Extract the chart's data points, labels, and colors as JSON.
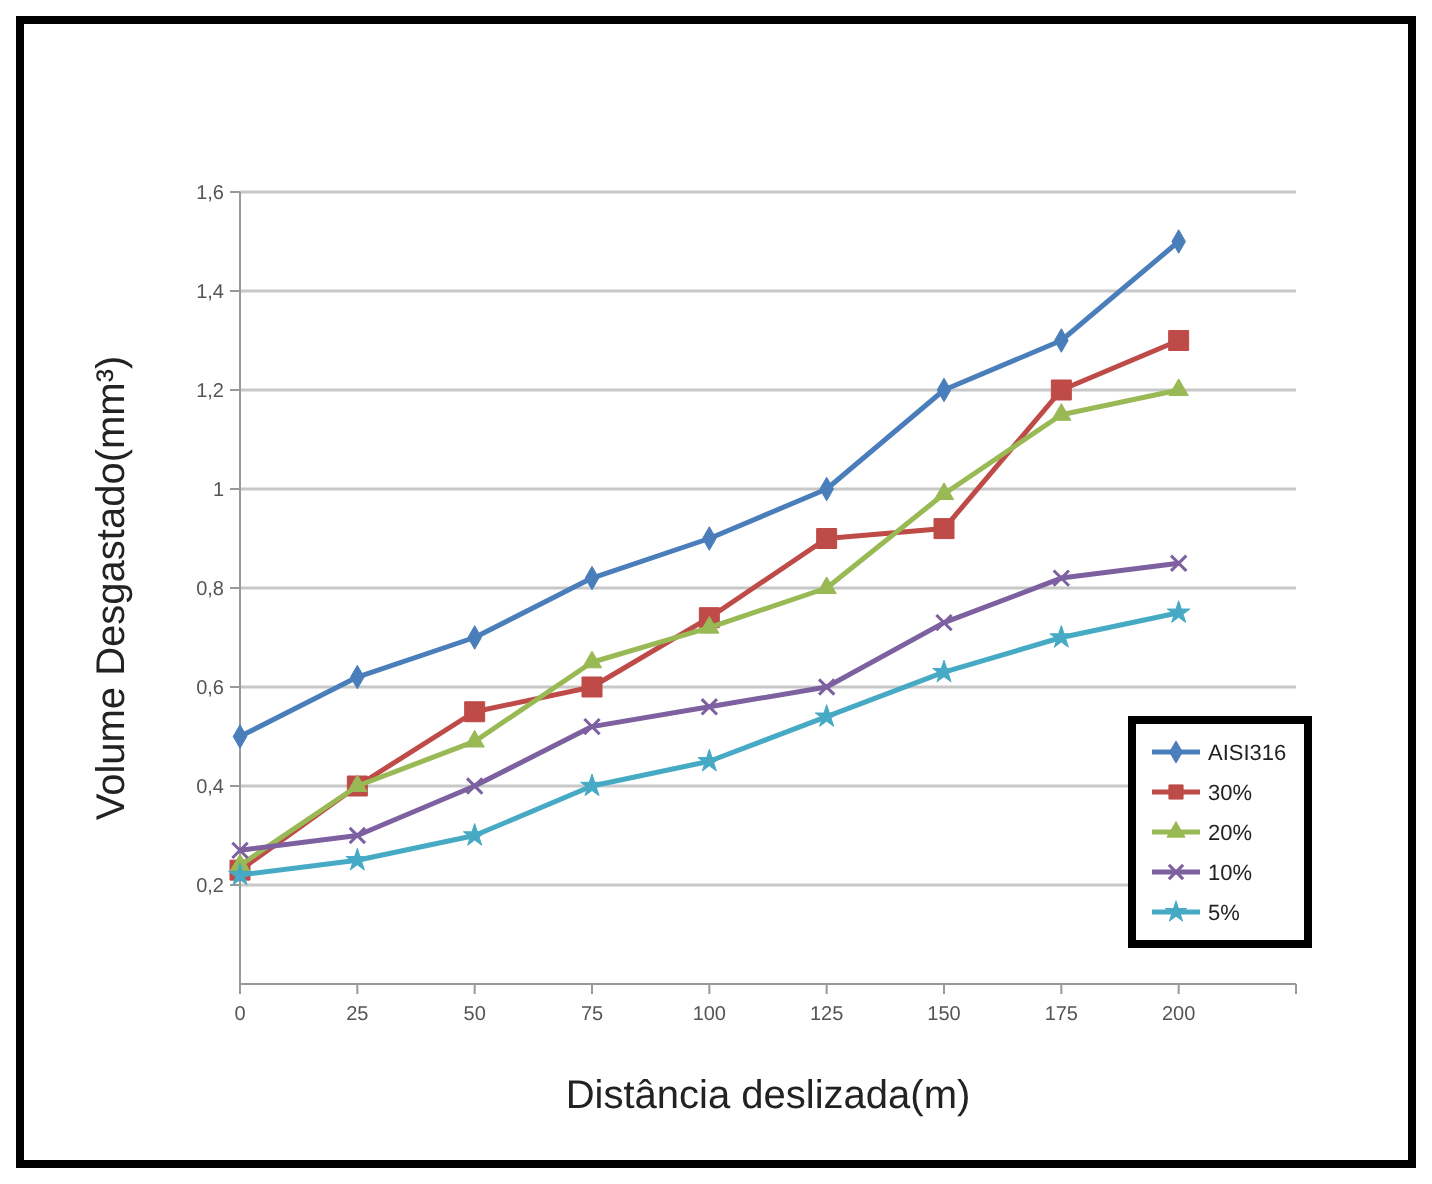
{
  "chart_data": {
    "type": "line",
    "xlabel": "Distância deslizada(m)",
    "ylabel": "Volume Desgastado(mm³)",
    "x": [
      0,
      25,
      50,
      75,
      100,
      125,
      150,
      175,
      200
    ],
    "xlim": [
      0,
      225
    ],
    "xticks": [
      0,
      25,
      50,
      75,
      100,
      125,
      150,
      175,
      200,
      {
        "value": 225,
        "label": null
      }
    ],
    "ylim": [
      0,
      1.6
    ],
    "yticks": [
      {
        "value": 0.2,
        "label": "0,2"
      },
      {
        "value": 0.4,
        "label": "0,4"
      },
      {
        "value": 0.6,
        "label": "0,6"
      },
      {
        "value": 0.8,
        "label": "0,8"
      },
      {
        "value": 1,
        "label": "1"
      },
      {
        "value": 1.2,
        "label": "1,2"
      },
      {
        "value": 1.4,
        "label": "1,4"
      },
      {
        "value": 1.6,
        "label": "1,6"
      }
    ],
    "grid": "y",
    "legend": "bottom right",
    "line_style": "solid",
    "series": [
      {
        "name": "AISI316",
        "color": "#4a7ebb",
        "marker": "diamond",
        "values": [
          0.5,
          0.62,
          0.7,
          0.82,
          0.9,
          1.0,
          1.2,
          1.3,
          1.5
        ]
      },
      {
        "name": "30%",
        "color": "#be4b48",
        "marker": "square",
        "values": [
          0.23,
          0.4,
          0.55,
          0.6,
          0.74,
          0.9,
          0.92,
          1.2,
          1.3
        ]
      },
      {
        "name": "20%",
        "color": "#98b954",
        "marker": "triangle",
        "values": [
          0.24,
          0.4,
          0.49,
          0.65,
          0.72,
          0.8,
          0.99,
          1.15,
          1.2
        ]
      },
      {
        "name": "10%",
        "color": "#7d60a0",
        "marker": "cross",
        "values": [
          0.27,
          0.3,
          0.4,
          0.52,
          0.56,
          0.6,
          0.73,
          0.82,
          0.85
        ]
      },
      {
        "name": "5%",
        "color": "#46aac5",
        "marker": "star",
        "values": [
          0.22,
          0.25,
          0.3,
          0.4,
          0.45,
          0.54,
          0.63,
          0.7,
          0.75
        ]
      }
    ]
  }
}
